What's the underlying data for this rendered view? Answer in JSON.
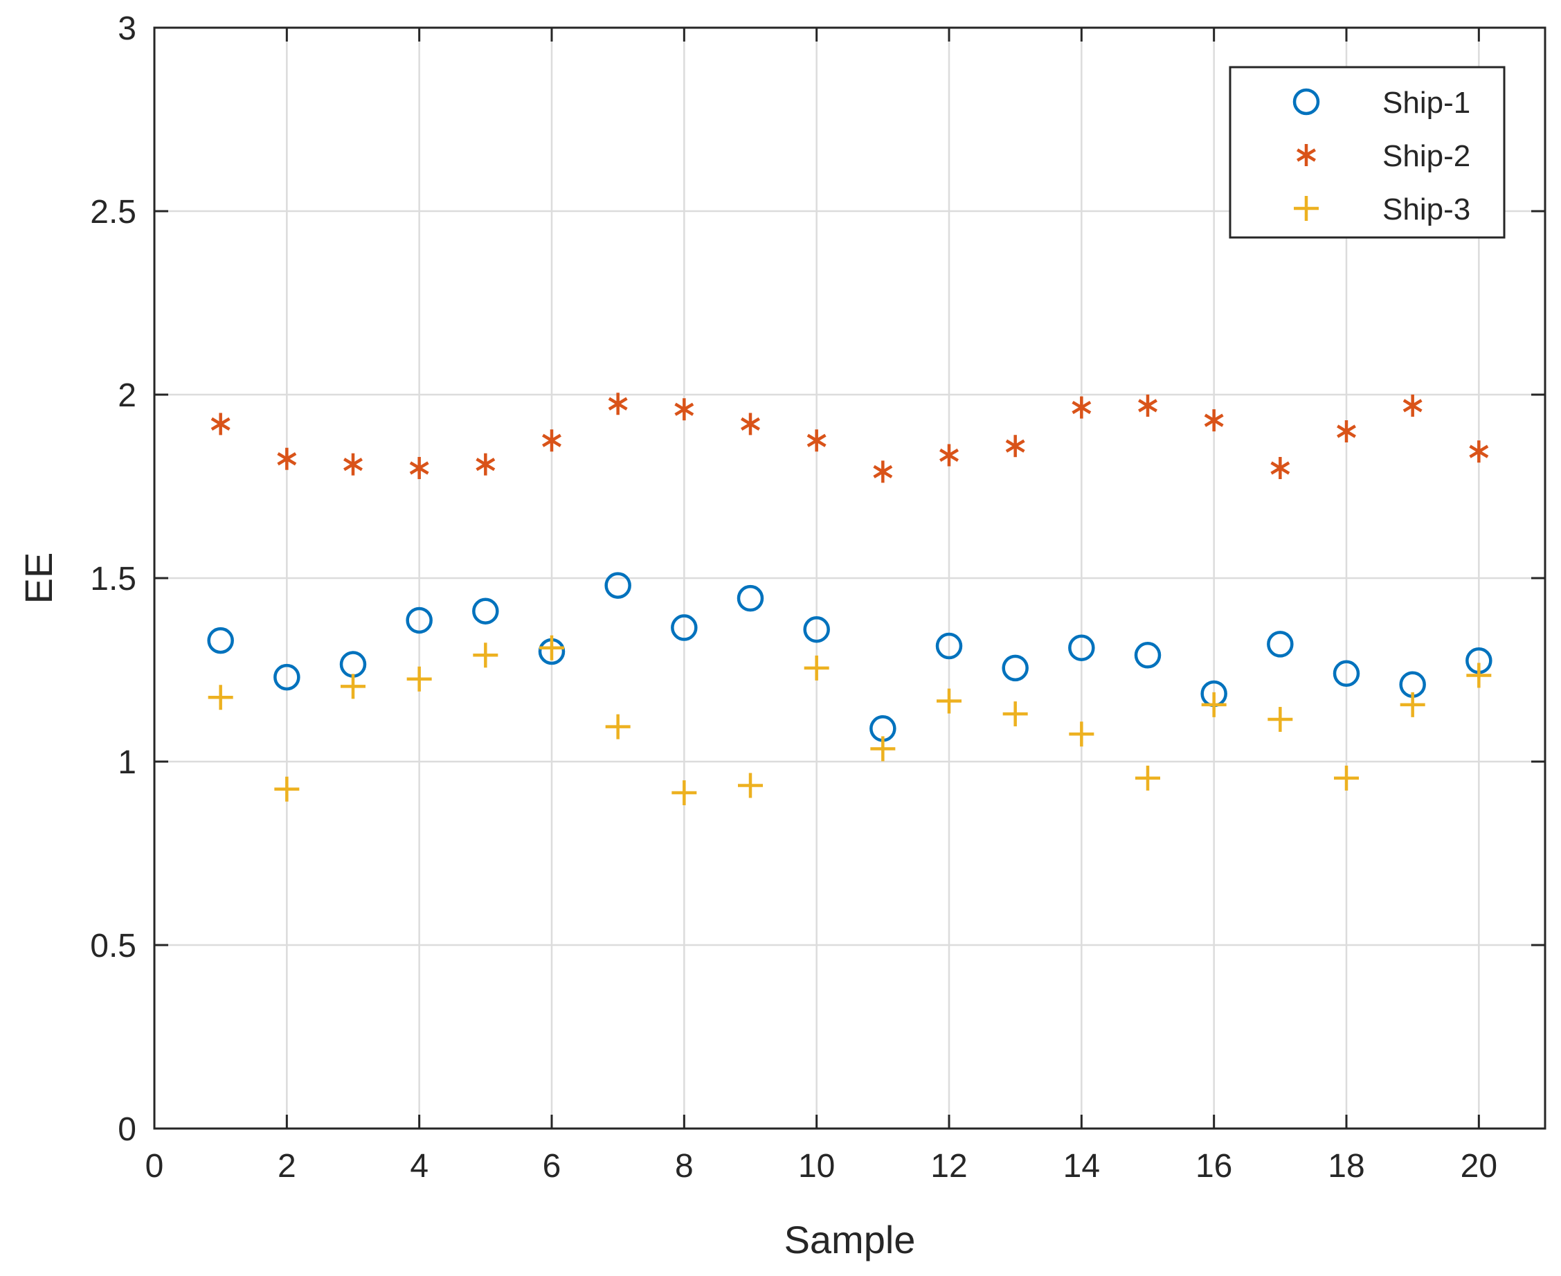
{
  "chart_data": {
    "type": "scatter",
    "title": "",
    "xlabel": "Sample",
    "ylabel": "EE",
    "xlim": [
      0,
      21
    ],
    "ylim": [
      0,
      3
    ],
    "xticks": [
      0,
      2,
      4,
      6,
      8,
      10,
      12,
      14,
      16,
      18,
      20
    ],
    "yticks": [
      0,
      0.5,
      1,
      1.5,
      2,
      2.5,
      3
    ],
    "xtick_labels": [
      "0",
      "2",
      "4",
      "6",
      "8",
      "10",
      "12",
      "14",
      "16",
      "18",
      "20"
    ],
    "ytick_labels": [
      "0",
      "0.5",
      "1",
      "1.5",
      "2",
      "2.5",
      "3"
    ],
    "grid": true,
    "legend_position": "top-right",
    "x": [
      1,
      2,
      3,
      4,
      5,
      6,
      7,
      8,
      9,
      10,
      11,
      12,
      13,
      14,
      15,
      16,
      17,
      18,
      19,
      20
    ],
    "series": [
      {
        "name": "Ship-1",
        "marker": "circle",
        "color": "#0072BD",
        "values": [
          1.33,
          1.23,
          1.265,
          1.385,
          1.41,
          1.3,
          1.48,
          1.365,
          1.445,
          1.36,
          1.09,
          1.315,
          1.255,
          1.31,
          1.29,
          1.185,
          1.32,
          1.24,
          1.21,
          1.275
        ]
      },
      {
        "name": "Ship-2",
        "marker": "asterisk",
        "color": "#D95319",
        "values": [
          1.92,
          1.825,
          1.81,
          1.8,
          1.81,
          1.875,
          1.975,
          1.96,
          1.92,
          1.875,
          1.79,
          1.835,
          1.86,
          1.965,
          1.97,
          1.93,
          1.8,
          1.9,
          1.97,
          1.845
        ]
      },
      {
        "name": "Ship-3",
        "marker": "plus",
        "color": "#EDB120",
        "values": [
          1.175,
          0.925,
          1.205,
          1.225,
          1.29,
          1.31,
          1.095,
          0.915,
          0.935,
          1.255,
          1.035,
          1.165,
          1.13,
          1.075,
          0.955,
          1.155,
          1.115,
          0.955,
          1.155,
          1.235
        ]
      }
    ]
  }
}
